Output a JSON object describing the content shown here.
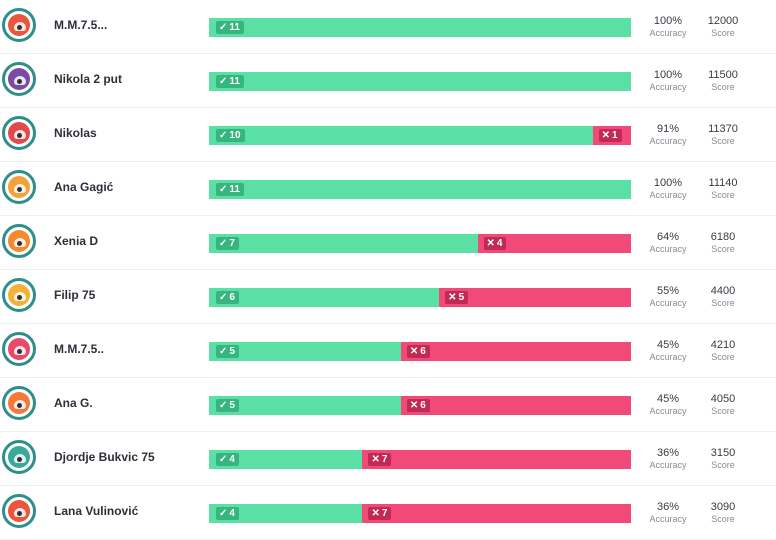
{
  "labels": {
    "accuracy": "Accuracy",
    "score": "Score"
  },
  "symbols": {
    "check": "✓",
    "cross": "✕"
  },
  "rows": [
    {
      "name": "M.M.7.5...",
      "correct": 11,
      "incorrect": 0,
      "accuracy": "100%",
      "score": "12000",
      "avatar_icon": "robot-avatar-icon",
      "avatar_color": "#e8573c"
    },
    {
      "name": "Nikola 2 put",
      "correct": 11,
      "incorrect": 0,
      "accuracy": "100%",
      "score": "11500",
      "avatar_icon": "monster-avatar-icon",
      "avatar_color": "#7b4aa8"
    },
    {
      "name": "Nikolas",
      "correct": 10,
      "incorrect": 1,
      "accuracy": "91%",
      "score": "11370",
      "avatar_icon": "monster-avatar-icon",
      "avatar_color": "#e24a4a"
    },
    {
      "name": "Ana Gagić",
      "correct": 11,
      "incorrect": 0,
      "accuracy": "100%",
      "score": "11140",
      "avatar_icon": "bus-avatar-icon",
      "avatar_color": "#f2a23a"
    },
    {
      "name": "Xenia D",
      "correct": 7,
      "incorrect": 4,
      "accuracy": "64%",
      "score": "6180",
      "avatar_icon": "pizza-avatar-icon",
      "avatar_color": "#f28a2e"
    },
    {
      "name": "Filip 75",
      "correct": 6,
      "incorrect": 5,
      "accuracy": "55%",
      "score": "4400",
      "avatar_icon": "bottle-avatar-icon",
      "avatar_color": "#f2b23a"
    },
    {
      "name": "M.M.7.5..",
      "correct": 5,
      "incorrect": 6,
      "accuracy": "45%",
      "score": "4210",
      "avatar_icon": "glasses-avatar-icon",
      "avatar_color": "#e84a6a"
    },
    {
      "name": "Ana G.",
      "correct": 5,
      "incorrect": 6,
      "accuracy": "45%",
      "score": "4050",
      "avatar_icon": "clown-avatar-icon",
      "avatar_color": "#f27a3a"
    },
    {
      "name": "Djordje Bukvic 75",
      "correct": 4,
      "incorrect": 7,
      "accuracy": "36%",
      "score": "3150",
      "avatar_icon": "shoe-avatar-icon",
      "avatar_color": "#3aa89a"
    },
    {
      "name": "Lana Vulinović",
      "correct": 4,
      "incorrect": 7,
      "accuracy": "36%",
      "score": "3090",
      "avatar_icon": "robot-avatar-icon",
      "avatar_color": "#e8573c"
    }
  ]
}
